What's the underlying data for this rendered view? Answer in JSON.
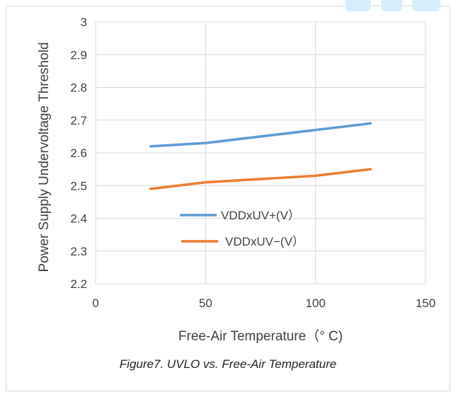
{
  "caption": "Figure7. UVLO vs. Free-Air Temperature",
  "colors": {
    "series1": "#5b9bd5",
    "series2": "#ed7d31",
    "grid": "#d9d9d9",
    "watermark": "#d6f0fb"
  },
  "chart_data": {
    "type": "line",
    "xlabel": "Free-Air Temperature（° C)",
    "ylabel": "Power Supply Undervoltage Threshold",
    "xlim": [
      0,
      150
    ],
    "ylim": [
      2.2,
      3.0
    ],
    "x_ticks": [
      "0",
      "50",
      "100",
      "150"
    ],
    "y_ticks": [
      "2.2",
      "2.3",
      "2.4",
      "2.5",
      "2.6",
      "2.7",
      "2.8",
      "2.9",
      "3"
    ],
    "grid": true,
    "legend_position": "center-left, inside plot",
    "series": [
      {
        "name": "VDDxUV+(V）",
        "x": [
          25,
          50,
          100,
          125
        ],
        "y": [
          2.62,
          2.63,
          2.67,
          2.69
        ]
      },
      {
        "name": "VDDxUV−(V）",
        "x": [
          25,
          50,
          100,
          125
        ],
        "y": [
          2.49,
          2.51,
          2.53,
          2.55
        ]
      }
    ]
  }
}
